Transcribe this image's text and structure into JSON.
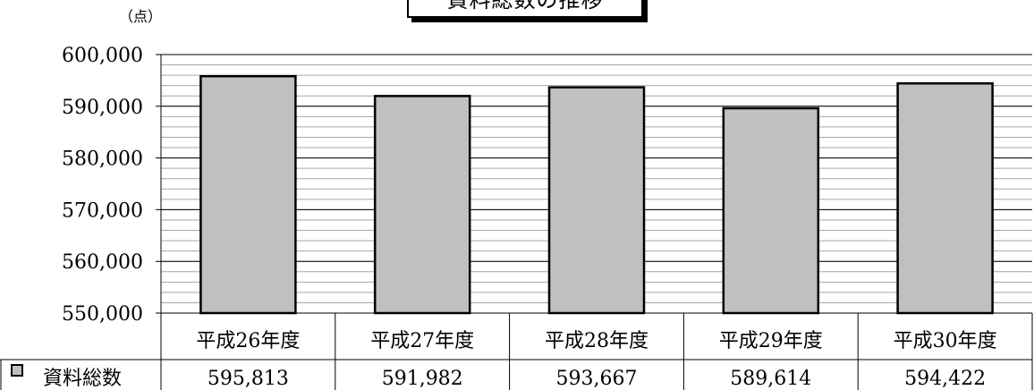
{
  "chart_data": {
    "type": "bar",
    "title": "資料総数の推移",
    "unit_label": "（点）",
    "categories": [
      "平成26年度",
      "平成27年度",
      "平成28年度",
      "平成29年度",
      "平成30年度"
    ],
    "series": [
      {
        "name": "資料総数",
        "values": [
          595813,
          591982,
          593667,
          589614,
          594422
        ],
        "value_labels": [
          "595,813",
          "591,982",
          "593,667",
          "589,614",
          "594,422"
        ]
      }
    ],
    "y_ticks": [
      "550,000",
      "560,000",
      "570,000",
      "580,000",
      "590,000",
      "600,000"
    ],
    "ylim": [
      550000,
      600000
    ],
    "grid": true,
    "data_table": true,
    "colors": {
      "bar": "#c0c0c0",
      "bar_stroke": "#000000",
      "grid": "#000000",
      "minor_grid": "#a6a6a6"
    }
  }
}
